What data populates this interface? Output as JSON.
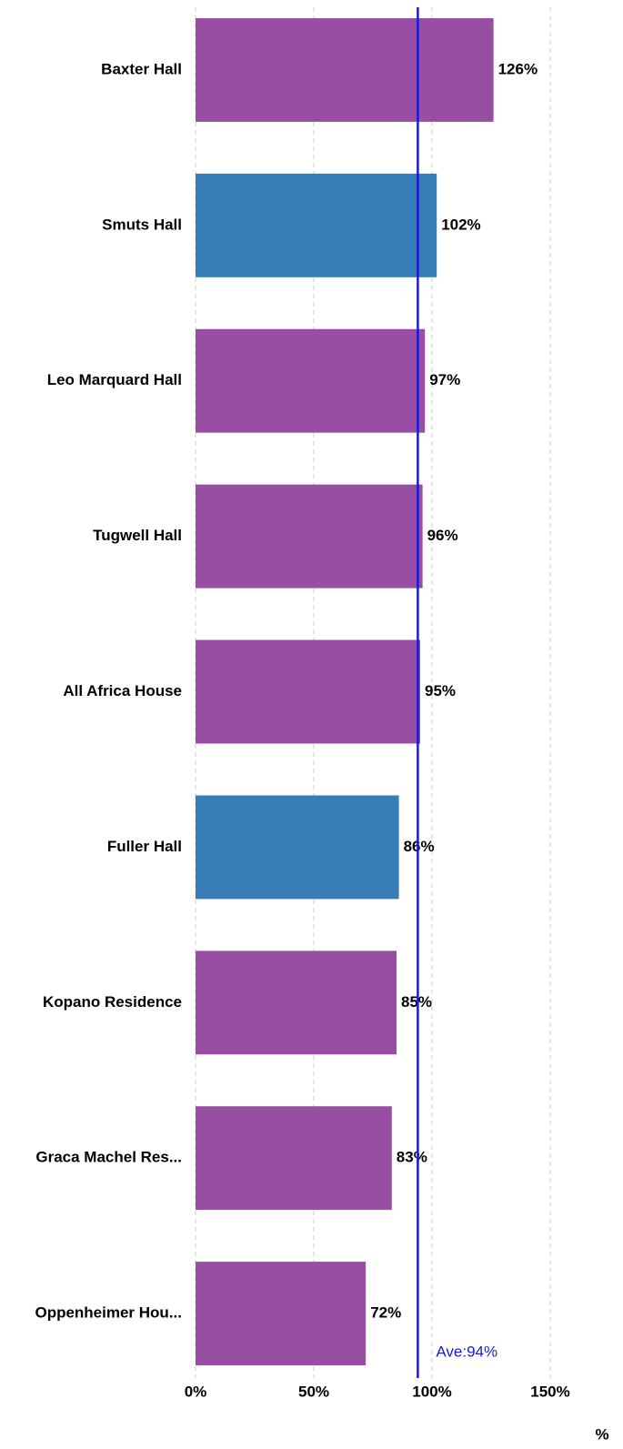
{
  "chart_data": {
    "type": "bar",
    "orientation": "horizontal",
    "categories": [
      "Baxter Hall",
      "Smuts Hall",
      "Leo Marquard Hall",
      "Tugwell Hall",
      "All Africa House",
      "Fuller Hall",
      "Kopano Residence",
      "Graca Machel Res...",
      "Oppenheimer Hou..."
    ],
    "values": [
      126,
      102,
      97,
      96,
      95,
      86,
      85,
      83,
      72
    ],
    "value_labels": [
      "126%",
      "102%",
      "97%",
      "96%",
      "95%",
      "86%",
      "85%",
      "83%",
      "72%"
    ],
    "colors": [
      "#984ea3",
      "#377eb8",
      "#984ea3",
      "#984ea3",
      "#984ea3",
      "#377eb8",
      "#984ea3",
      "#984ea3",
      "#984ea3"
    ],
    "xlim": [
      0,
      175
    ],
    "xticks": [
      {
        "value": 0,
        "label": "0%"
      },
      {
        "value": 50,
        "label": "50%"
      },
      {
        "value": 100,
        "label": "100%"
      },
      {
        "value": 150,
        "label": "150%"
      }
    ],
    "x_label": "%",
    "grid": true,
    "average": 94,
    "average_label": "Ave:94%",
    "average_color": "#1a1ad4"
  }
}
